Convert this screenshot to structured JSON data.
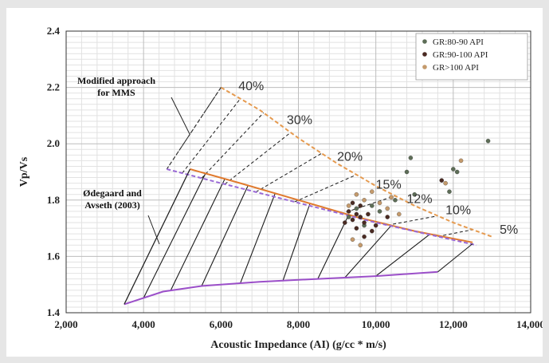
{
  "chart_data": {
    "type": "scatter",
    "xlabel": "Acoustic Impedance (AI) (g/cc * m/s)",
    "ylabel": "Vp/Vs",
    "xlim": [
      2000,
      14000
    ],
    "ylim": [
      1.4,
      2.4
    ],
    "x_ticks": [
      "2,000",
      "4,000",
      "6,000",
      "8,000",
      "10,000",
      "12,000",
      "14,000"
    ],
    "y_ticks": [
      "1.4",
      "1.6",
      "1.8",
      "2.0",
      "2.2",
      "2.4"
    ],
    "grid": true,
    "legend_position": "top-right",
    "series": [
      {
        "name": "GR:80-90 API",
        "color": "#5d6d57",
        "points": [
          [
            9300,
            1.74
          ],
          [
            9500,
            1.77
          ],
          [
            9700,
            1.71
          ],
          [
            9900,
            1.78
          ],
          [
            10100,
            1.76
          ],
          [
            10500,
            1.8
          ],
          [
            10800,
            1.9
          ],
          [
            11000,
            1.82
          ],
          [
            11900,
            1.83
          ],
          [
            12000,
            1.91
          ],
          [
            12100,
            1.9
          ],
          [
            12900,
            2.01
          ],
          [
            10900,
            1.95
          ]
        ]
      },
      {
        "name": "GR:90-100 API",
        "color": "#4a2a22",
        "points": [
          [
            9200,
            1.72
          ],
          [
            9300,
            1.76
          ],
          [
            9400,
            1.73
          ],
          [
            9500,
            1.75
          ],
          [
            9500,
            1.7
          ],
          [
            9600,
            1.74
          ],
          [
            9600,
            1.78
          ],
          [
            9700,
            1.72
          ],
          [
            9800,
            1.75
          ],
          [
            9900,
            1.69
          ],
          [
            10000,
            1.71
          ],
          [
            9400,
            1.79
          ],
          [
            9700,
            1.67
          ],
          [
            11700,
            1.87
          ],
          [
            10300,
            1.74
          ]
        ]
      },
      {
        "name": "GR>100 API",
        "color": "#c49a6c",
        "points": [
          [
            9300,
            1.78
          ],
          [
            9500,
            1.82
          ],
          [
            9700,
            1.8
          ],
          [
            9900,
            1.83
          ],
          [
            10100,
            1.79
          ],
          [
            10300,
            1.77
          ],
          [
            10600,
            1.75
          ],
          [
            9400,
            1.66
          ],
          [
            9600,
            1.64
          ],
          [
            11800,
            1.86
          ],
          [
            12200,
            1.94
          ],
          [
            10400,
            1.81
          ]
        ]
      }
    ],
    "model_lines": [
      {
        "label": "Modified approach for MMS",
        "color": "#e59a4f",
        "style": "dashed",
        "points": [
          [
            6000,
            2.2
          ],
          [
            7000,
            2.12
          ],
          [
            8000,
            2.02
          ],
          [
            9000,
            1.93
          ],
          [
            10000,
            1.85
          ],
          [
            11000,
            1.78
          ],
          [
            12000,
            1.72
          ],
          [
            13000,
            1.67
          ]
        ]
      },
      {
        "label": "Modified approach for MMS",
        "color": "#333333",
        "style": "dashed",
        "points": [
          [
            6000,
            2.2
          ],
          [
            4600,
            1.91
          ]
        ]
      },
      {
        "label": "Ødegaard and Avseth (2003)",
        "color": "#e07a2e",
        "style": "solid",
        "points": [
          [
            5200,
            1.91
          ],
          [
            6500,
            1.86
          ],
          [
            8000,
            1.8
          ],
          [
            9500,
            1.74
          ],
          [
            11000,
            1.69
          ],
          [
            12500,
            1.65
          ]
        ]
      },
      {
        "label": "Ødegaard and Avseth (2003)",
        "color": "#9a6ad6",
        "style": "dashed",
        "points": [
          [
            4600,
            1.91
          ],
          [
            6000,
            1.86
          ],
          [
            8000,
            1.79
          ],
          [
            10000,
            1.72
          ],
          [
            12600,
            1.64
          ]
        ]
      },
      {
        "label": "Ødegaard and Avseth (2003)",
        "color": "#9b4fc9",
        "style": "solid",
        "points": [
          [
            3500,
            1.43
          ],
          [
            4500,
            1.475
          ],
          [
            5500,
            1.495
          ],
          [
            7000,
            1.51
          ],
          [
            8500,
            1.52
          ],
          [
            10000,
            1.53
          ],
          [
            11600,
            1.545
          ]
        ]
      },
      {
        "label": "Ødegaard and Avseth (2003)",
        "color": "#222222",
        "style": "solid",
        "points": [
          [
            3500,
            1.43
          ],
          [
            5200,
            1.91
          ]
        ]
      },
      {
        "label": "Ødegaard and Avseth (2003)",
        "color": "#222222",
        "style": "solid",
        "points": [
          [
            11600,
            1.545
          ],
          [
            12500,
            1.645
          ]
        ]
      }
    ],
    "porosity_labels": [
      {
        "text": "40%",
        "x": 6450,
        "y": 2.19
      },
      {
        "text": "30%",
        "x": 7700,
        "y": 2.07
      },
      {
        "text": "20%",
        "x": 9000,
        "y": 1.94
      },
      {
        "text": "15%",
        "x": 10000,
        "y": 1.84
      },
      {
        "text": "12%",
        "x": 10800,
        "y": 1.79
      },
      {
        "text": "10%",
        "x": 11800,
        "y": 1.75
      },
      {
        "text": "5%",
        "x": 13200,
        "y": 1.68
      }
    ],
    "annotations": [
      {
        "lines": [
          "Modified approach",
          "for MMS"
        ]
      },
      {
        "lines": [
          "Ødegaard and",
          "Avseth (2003)"
        ]
      }
    ]
  }
}
